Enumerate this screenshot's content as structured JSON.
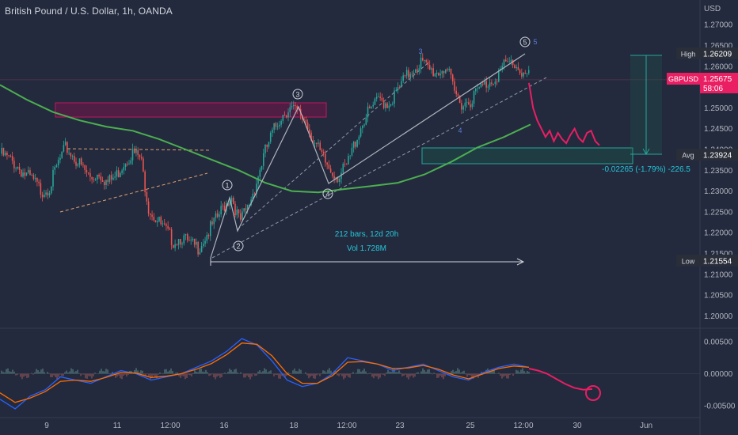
{
  "header": {
    "title": "British Pound / U.S. Dollar, 1h, OANDA"
  },
  "colors": {
    "background": "#232a3d",
    "up": "#26a69a",
    "down": "#ef5350",
    "ma": "#4caf50",
    "projection": "#e91e63",
    "macd": "#2962ff",
    "signal": "#ff6d00",
    "highlight_box": "#880e4f",
    "measure": "#26a69a"
  },
  "chart_data": [
    {
      "type": "candlestick",
      "title": "British Pound / U.S. Dollar, 1h, OANDA",
      "price_axis_label": "USD",
      "yticks": [
        "1.27000",
        "1.26500",
        "1.26000",
        "1.25500",
        "1.25000",
        "1.24500",
        "1.24000",
        "1.23500",
        "1.23000",
        "1.22500",
        "1.22000",
        "1.21500",
        "1.21000",
        "1.20500",
        "1.20000"
      ],
      "ylim": [
        1.198,
        1.2725
      ],
      "xticks": [
        "9",
        "11",
        "12:00",
        "16",
        "18",
        "12:00",
        "23",
        "25",
        "12:00",
        "30",
        "Jun"
      ],
      "price_path_close": [
        1.239,
        1.2378,
        1.2362,
        1.234,
        1.2325,
        1.23,
        1.231,
        1.2365,
        1.2405,
        1.238,
        1.2355,
        1.233,
        1.2345,
        1.232,
        1.2335,
        1.237,
        1.2392,
        1.238,
        1.226,
        1.223,
        1.2205,
        1.218,
        1.219,
        1.217,
        1.2165,
        1.2195,
        1.2225,
        1.226,
        1.229,
        1.2225,
        1.226,
        1.232,
        1.239,
        1.244,
        1.248,
        1.25,
        1.2488,
        1.247,
        1.242,
        1.238,
        1.235,
        1.2335,
        1.236,
        1.242,
        1.247,
        1.25,
        1.252,
        1.251,
        1.2535,
        1.257,
        1.2595,
        1.261,
        1.259,
        1.2585,
        1.26,
        1.2535,
        1.251,
        1.252,
        1.2545,
        1.256,
        1.2575,
        1.26,
        1.261,
        1.259,
        1.2575
      ],
      "projection_path": [
        1.256,
        1.25,
        1.247,
        1.245,
        1.243,
        1.2445,
        1.242,
        1.244,
        1.2425,
        1.2415,
        1.2435,
        1.245,
        1.2428,
        1.2418,
        1.244,
        1.2445,
        1.242,
        1.241
      ],
      "moving_average": [
        1.2555,
        1.252,
        1.249,
        1.247,
        1.2455,
        1.2445,
        1.2425,
        1.24,
        1.2375,
        1.235,
        1.232,
        1.23,
        1.2297,
        1.2305,
        1.2312,
        1.232,
        1.234,
        1.237,
        1.2405,
        1.243,
        1.246
      ],
      "high_price": "1.26209",
      "low_price": "1.21554",
      "avg_price": "1.23924",
      "current_symbol": "GBPUSD",
      "current_price": "1.25675",
      "countdown": "58:06",
      "measure_label": "-0.02265 (-1.79%) -226.5",
      "labels": {
        "high": "High",
        "low": "Low",
        "avg": "Avg"
      },
      "range_stats": {
        "bars": "212 bars, 12d 20h",
        "volume": "Vol 1.728M"
      },
      "wave_labels": [
        "1",
        "2",
        "3",
        "4",
        "5"
      ],
      "sub_wave_labels": [
        "3",
        "4",
        "5"
      ]
    },
    {
      "type": "line",
      "yticks": [
        "0.00500",
        "0.00000",
        "-0.00500"
      ],
      "ylim": [
        -0.0065,
        0.0065
      ],
      "series": [
        {
          "values": [
            -0.004,
            -0.0055,
            -0.0035,
            -0.0025,
            -0.0005,
            -0.001,
            -0.0015,
            -0.0005,
            0.0005,
            0.0,
            -0.001,
            -0.0005,
            0.0,
            0.001,
            0.002,
            0.0035,
            0.0055,
            0.0045,
            0.002,
            -0.001,
            -0.002,
            -0.0015,
            0.0,
            0.0025,
            0.002,
            0.0015,
            0.0005,
            0.001,
            0.0015,
            0.0005,
            -0.0005,
            -0.001,
            0.0002,
            0.001,
            0.0015,
            0.001
          ]
        },
        {
          "values": [
            -0.003,
            -0.0045,
            -0.0038,
            -0.0028,
            -0.0012,
            -0.001,
            -0.0012,
            -0.0006,
            0.0002,
            0.0001,
            -0.0006,
            -0.0004,
            0.0,
            0.0007,
            0.0016,
            0.003,
            0.0048,
            0.0046,
            0.0028,
            0.0,
            -0.0015,
            -0.0015,
            -0.0003,
            0.0018,
            0.0019,
            0.0015,
            0.0008,
            0.0009,
            0.0013,
            0.0007,
            -0.0002,
            -0.0008,
            0.0,
            0.0008,
            0.0012,
            0.001
          ]
        }
      ],
      "projection": [
        0.0008,
        0.0005,
        0.0,
        -0.0008,
        -0.0016,
        -0.0022,
        -0.0025,
        -0.0024
      ]
    }
  ]
}
